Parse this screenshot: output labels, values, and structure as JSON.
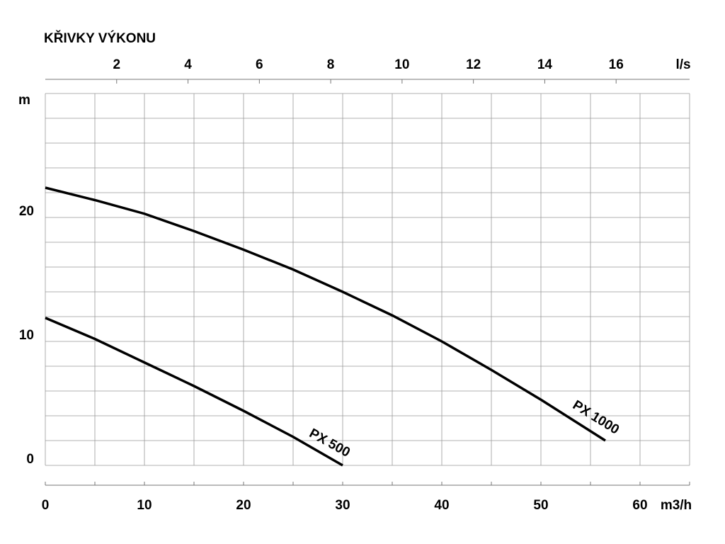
{
  "chart_data": {
    "type": "line",
    "title": "KŘIVKY VÝKONU",
    "x_label": "m3/h",
    "y_label": "m",
    "x2_label": "l/s",
    "xlim": [
      0,
      65
    ],
    "xticks": [
      0,
      10,
      20,
      30,
      40,
      50,
      60
    ],
    "x2lim": [
      0,
      18.06
    ],
    "x2ticks": [
      2,
      4,
      6,
      8,
      10,
      12,
      14,
      16
    ],
    "ylim": [
      0,
      30
    ],
    "yticks": [
      0,
      10,
      20
    ],
    "xgrid": [
      0,
      5,
      10,
      15,
      20,
      25,
      30,
      35,
      40,
      45,
      50,
      55,
      60,
      65
    ],
    "ygrid": [
      0,
      2,
      4,
      6,
      8,
      10,
      12,
      14,
      16,
      18,
      20,
      22,
      24,
      26,
      28,
      30
    ],
    "grid": true,
    "series": [
      {
        "name": "PX 500",
        "color": "#000000",
        "x": [
          0,
          5,
          10,
          15,
          20,
          25,
          30
        ],
        "values": [
          11.9,
          10.2,
          8.3,
          6.4,
          4.4,
          2.3,
          0
        ]
      },
      {
        "name": "PX 1000",
        "color": "#000000",
        "x": [
          0,
          5,
          10,
          15,
          20,
          25,
          30,
          35,
          40,
          45,
          50,
          56.5
        ],
        "values": [
          22.4,
          21.4,
          20.3,
          18.9,
          17.4,
          15.8,
          14.0,
          12.1,
          10.0,
          7.7,
          5.3,
          2.0
        ]
      }
    ]
  }
}
